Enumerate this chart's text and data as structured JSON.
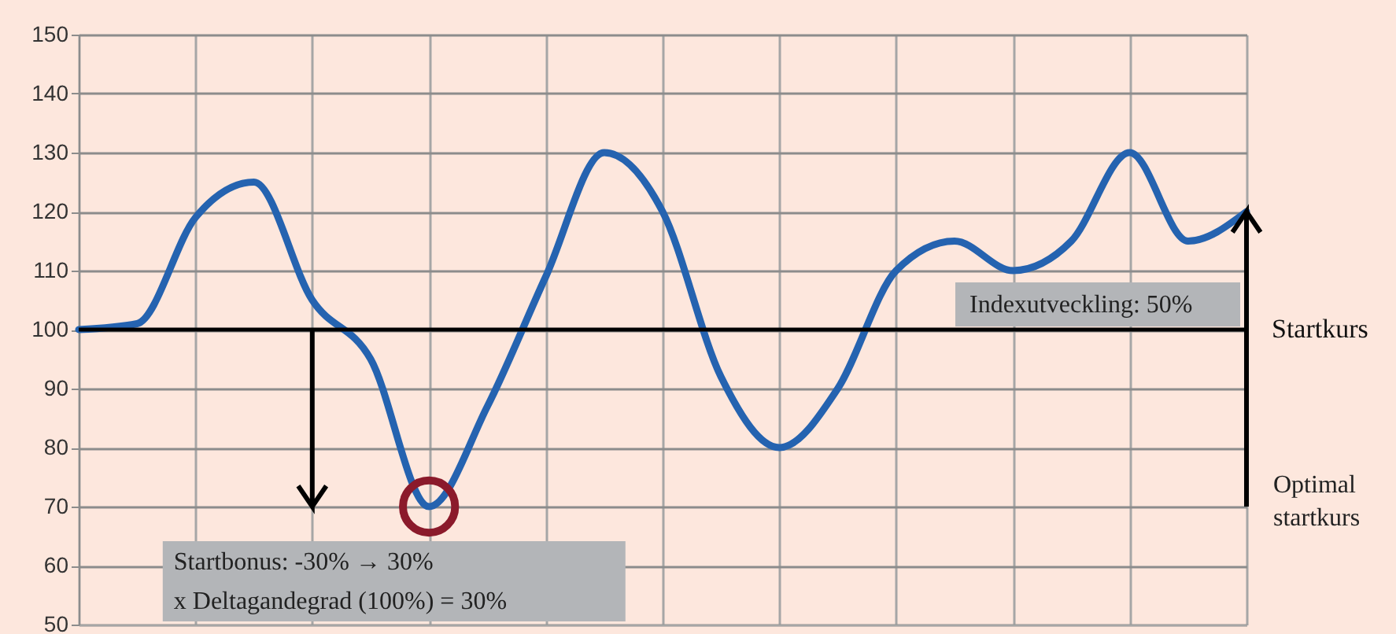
{
  "chart_data": {
    "type": "line",
    "categories": [
      null,
      null,
      null,
      null,
      null,
      null,
      null,
      null,
      null,
      null,
      null,
      null,
      null,
      null,
      null,
      null,
      null,
      null,
      null,
      null,
      null
    ],
    "series": [
      {
        "color": "#2563b0",
        "values": [
          100,
          101,
          119,
          125,
          105,
          95,
          70,
          87,
          109,
          130,
          120,
          92,
          80,
          90,
          110,
          115,
          110,
          115,
          130,
          115,
          120
        ]
      },
      {
        "type": "scatter",
        "marker": "circle",
        "color": "#8b1a2b",
        "values": [
          null,
          null,
          null,
          null,
          null,
          null,
          70,
          null,
          null,
          null,
          null,
          null,
          null,
          null,
          null,
          null,
          null,
          null,
          null,
          null,
          null
        ]
      }
    ],
    "ylim": [
      50,
      150
    ],
    "yticks": [
      50,
      60,
      70,
      80,
      90,
      100,
      110,
      120,
      130,
      140,
      150
    ],
    "tick_labels": "y",
    "grid": true,
    "line_style": "solid",
    "ref_lines": [
      {
        "axis": "y",
        "value": 100,
        "label": "Startkurs",
        "color": "#000000"
      }
    ],
    "annotations": [
      "Startbonus:              -30% → 30%",
      "x  Deltagandegrad (100%)   =    30%",
      "Indexutveckling:  50%",
      "Optimal\nstartkurs"
    ]
  }
}
